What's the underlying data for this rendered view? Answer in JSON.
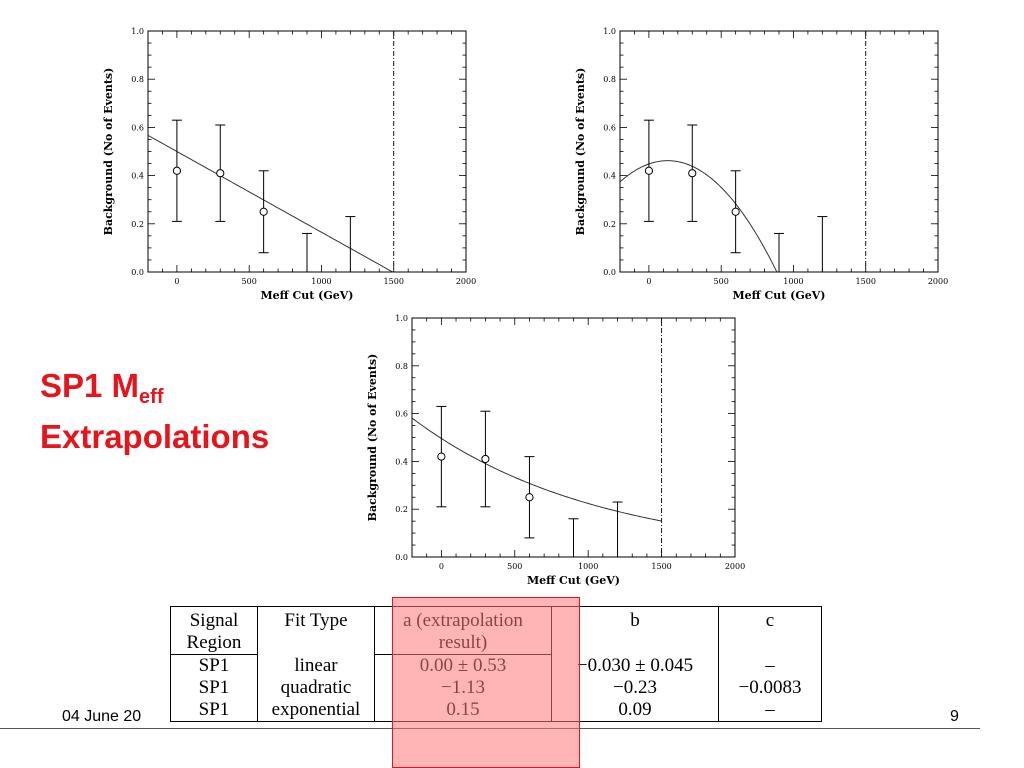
{
  "slide": {
    "title_main": "SP1 M",
    "title_sub": "eff",
    "title_line2": "Extrapolations",
    "footer_date": "04 June 20",
    "page_number": "9"
  },
  "colors": {
    "title": "#e8141b",
    "highlight": "#ff7878"
  },
  "chart_data": [
    {
      "type": "scatter",
      "fit": "linear",
      "xlabel": "Meff Cut (GeV)",
      "ylabel": "Background (No of Events)",
      "xlim": [
        -200,
        2000
      ],
      "ylim": [
        0,
        1.0
      ],
      "xticks": [
        0,
        500,
        1000,
        1500,
        2000
      ],
      "yticks": [
        0.0,
        0.2,
        0.4,
        0.6,
        0.8,
        1.0
      ],
      "cut_line_x": 1500,
      "points": [
        {
          "x": 0,
          "y": 0.42,
          "lo": 0.21,
          "hi": 0.63,
          "marker": true
        },
        {
          "x": 300,
          "y": 0.41,
          "lo": 0.21,
          "hi": 0.61,
          "marker": true
        },
        {
          "x": 600,
          "y": 0.25,
          "lo": 0.08,
          "hi": 0.42,
          "marker": true
        },
        {
          "x": 900,
          "y": null,
          "lo": 0.0,
          "hi": 0.16,
          "marker": false
        },
        {
          "x": 1200,
          "y": null,
          "lo": 0.0,
          "hi": 0.23,
          "marker": false
        }
      ],
      "fit_params": {
        "a": 0.5,
        "b": -0.000335
      },
      "fit_range": [
        -200,
        1500
      ]
    },
    {
      "type": "scatter",
      "fit": "quadratic",
      "xlabel": "Meff Cut (GeV)",
      "ylabel": "Background (No of Events)",
      "xlim": [
        -200,
        2000
      ],
      "ylim": [
        0,
        1.0
      ],
      "xticks": [
        0,
        500,
        1000,
        1500,
        2000
      ],
      "yticks": [
        0.0,
        0.2,
        0.4,
        0.6,
        0.8,
        1.0
      ],
      "cut_line_x": 1500,
      "points": [
        {
          "x": 0,
          "y": 0.42,
          "lo": 0.21,
          "hi": 0.63,
          "marker": true
        },
        {
          "x": 300,
          "y": 0.41,
          "lo": 0.21,
          "hi": 0.61,
          "marker": true
        },
        {
          "x": 600,
          "y": 0.25,
          "lo": 0.08,
          "hi": 0.42,
          "marker": true
        },
        {
          "x": 900,
          "y": null,
          "lo": 0.0,
          "hi": 0.16,
          "marker": false
        },
        {
          "x": 1200,
          "y": null,
          "lo": 0.0,
          "hi": 0.23,
          "marker": false
        }
      ],
      "fit_params": {
        "vx": 130,
        "vy": 0.462,
        "k": -8.1e-07
      },
      "fit_range": [
        -200,
        885
      ]
    },
    {
      "type": "scatter",
      "fit": "exponential",
      "xlabel": "Meff Cut (GeV)",
      "ylabel": "Background (No of Events)",
      "xlim": [
        -200,
        2000
      ],
      "ylim": [
        0,
        1.0
      ],
      "xticks": [
        0,
        500,
        1000,
        1500,
        2000
      ],
      "yticks": [
        0.0,
        0.2,
        0.4,
        0.6,
        0.8,
        1.0
      ],
      "cut_line_x": 1500,
      "points": [
        {
          "x": 0,
          "y": 0.42,
          "lo": 0.21,
          "hi": 0.63,
          "marker": true
        },
        {
          "x": 300,
          "y": 0.41,
          "lo": 0.21,
          "hi": 0.61,
          "marker": true
        },
        {
          "x": 600,
          "y": 0.25,
          "lo": 0.08,
          "hi": 0.42,
          "marker": true
        },
        {
          "x": 900,
          "y": null,
          "lo": 0.0,
          "hi": 0.16,
          "marker": false
        },
        {
          "x": 1200,
          "y": null,
          "lo": 0.0,
          "hi": 0.23,
          "marker": false
        }
      ],
      "fit_params": {
        "A": 0.496,
        "k": -0.000795
      },
      "fit_range": [
        -200,
        1500
      ]
    }
  ],
  "table": {
    "headers": {
      "signal": [
        "Signal",
        "Region"
      ],
      "fit": "Fit Type",
      "a": [
        "a (extrapolation",
        "result)"
      ],
      "b": "b",
      "c": "c"
    },
    "rows": [
      {
        "signal": "SP1",
        "fit": "linear",
        "a": "0.00 ± 0.53",
        "b": "−0.030 ± 0.045",
        "c": "–"
      },
      {
        "signal": "SP1",
        "fit": "quadratic",
        "a": "−1.13",
        "b": "−0.23",
        "c": "−0.0083"
      },
      {
        "signal": "SP1",
        "fit": "exponential",
        "a": "0.15",
        "b": "0.09",
        "c": "–"
      }
    ]
  }
}
